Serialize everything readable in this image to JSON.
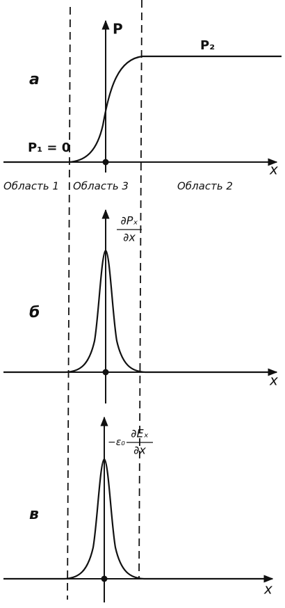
{
  "panels": [
    {
      "label": "а",
      "y_label": "P",
      "x_label": "x",
      "left_value": "P₁ = 0",
      "right_value": "P₂",
      "regions": [
        "Область 1",
        "Область 3",
        "Область 2"
      ]
    },
    {
      "label": "б",
      "x_label": "x",
      "y_numerator": "∂Pₓ",
      "y_denominator": "∂x"
    },
    {
      "label": "в",
      "x_label": "x",
      "y_prefix": "−ε₀",
      "y_numerator": "∂Eₓ",
      "y_denominator": "∂x"
    }
  ]
}
